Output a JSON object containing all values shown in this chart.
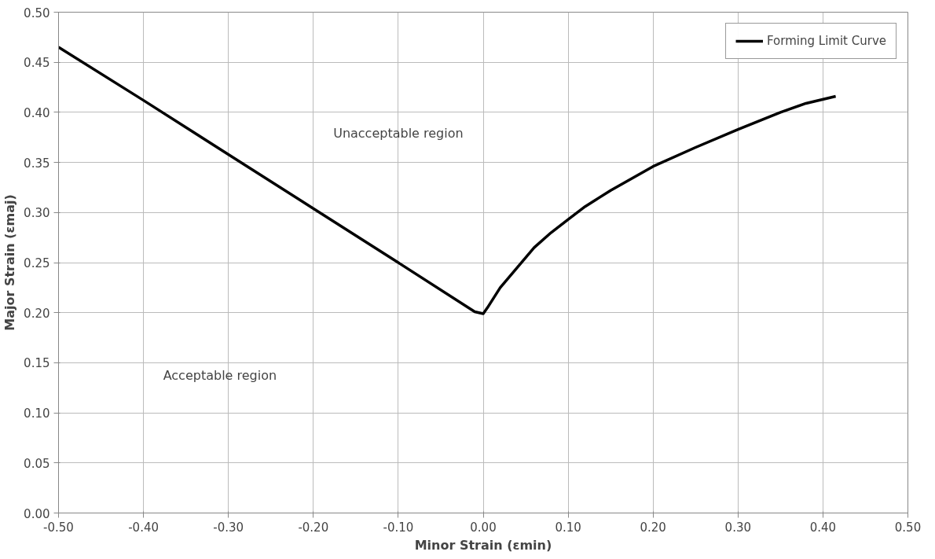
{
  "chart_data": {
    "type": "line",
    "xlabel": "Minor Strain (εmin)",
    "ylabel": "Major Strain (εmaj)",
    "xlim": [
      -0.5,
      0.5
    ],
    "ylim": [
      0,
      0.5
    ],
    "xticks": [
      {
        "value": -0.5,
        "label": "-0.50"
      },
      {
        "value": -0.4,
        "label": "-0.40"
      },
      {
        "value": -0.3,
        "label": "-0.30"
      },
      {
        "value": -0.2,
        "label": "-0.20"
      },
      {
        "value": -0.1,
        "label": "-0.10"
      },
      {
        "value": 0,
        "label": "0.00"
      },
      {
        "value": 0.1,
        "label": "0.10"
      },
      {
        "value": 0.2,
        "label": "0.20"
      },
      {
        "value": 0.3,
        "label": "0.30"
      },
      {
        "value": 0.4,
        "label": "0.40"
      },
      {
        "value": 0.5,
        "label": "0.50"
      }
    ],
    "yticks": [
      {
        "value": 0,
        "label": "0.00"
      },
      {
        "value": 0.05,
        "label": "0.05"
      },
      {
        "value": 0.1,
        "label": "0.10"
      },
      {
        "value": 0.15,
        "label": "0.15"
      },
      {
        "value": 0.2,
        "label": "0.20"
      },
      {
        "value": 0.25,
        "label": "0.25"
      },
      {
        "value": 0.3,
        "label": "0.30"
      },
      {
        "value": 0.35,
        "label": "0.35"
      },
      {
        "value": 0.4,
        "label": "0.40"
      },
      {
        "value": 0.45,
        "label": "0.45"
      },
      {
        "value": 0.5,
        "label": "0.50"
      }
    ],
    "grid": true,
    "legend": "top right",
    "line_style": "solid",
    "series": [
      {
        "name": "Forming Limit Curve",
        "color": "#000000",
        "x": [
          -0.5,
          -0.4,
          -0.3,
          -0.2,
          -0.1,
          -0.01,
          0.0,
          0.005,
          0.02,
          0.04,
          0.06,
          0.08,
          0.1,
          0.12,
          0.15,
          0.2,
          0.25,
          0.3,
          0.35,
          0.38,
          0.415
        ],
        "values": [
          0.465,
          0.412,
          0.358,
          0.304,
          0.25,
          0.201,
          0.199,
          0.205,
          0.225,
          0.245,
          0.265,
          0.28,
          0.293,
          0.306,
          0.322,
          0.346,
          0.365,
          0.383,
          0.4,
          0.409,
          0.416
        ]
      }
    ],
    "annotations": [
      "Unacceptable region",
      "Acceptable region"
    ]
  }
}
